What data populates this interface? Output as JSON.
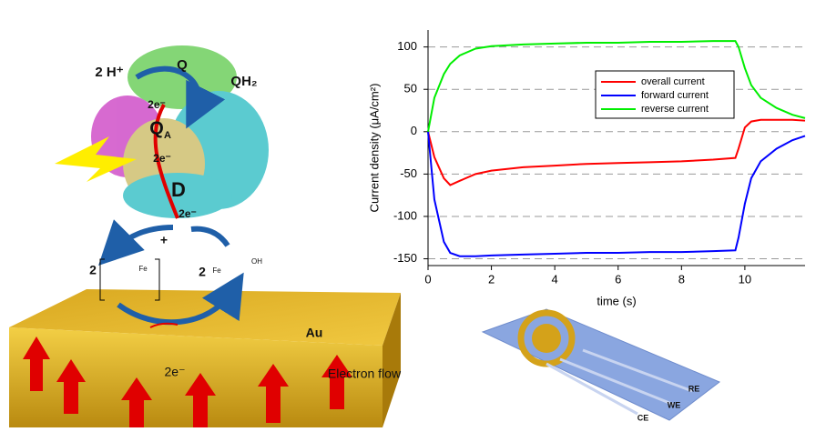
{
  "chart_data": {
    "type": "line",
    "xlabel": "time (s)",
    "ylabel": "Current density (μA/cm²)",
    "x": [
      0,
      0.2,
      0.5,
      0.7,
      1,
      1.5,
      2,
      3,
      4,
      5,
      6,
      7,
      8,
      9,
      9.7,
      9.8,
      10,
      10.2,
      10.5,
      11,
      11.5,
      11.9
    ],
    "series": [
      {
        "name": "overall current",
        "color": "#ff0000",
        "values": [
          0,
          -30,
          -55,
          -63,
          -58,
          -50,
          -46,
          -42,
          -40,
          -38,
          -37,
          -36,
          -35,
          -33,
          -31,
          -20,
          5,
          12,
          14,
          14,
          14,
          13
        ]
      },
      {
        "name": "forward current",
        "color": "#0000ff",
        "values": [
          0,
          -80,
          -130,
          -143,
          -147,
          -147,
          -146,
          -145,
          -144,
          -143,
          -143,
          -142,
          -142,
          -141,
          -140,
          -125,
          -85,
          -55,
          -35,
          -20,
          -10,
          -5
        ]
      },
      {
        "name": "reverse current",
        "color": "#00ee00",
        "values": [
          0,
          40,
          68,
          80,
          90,
          98,
          101,
          103,
          104,
          105,
          105,
          106,
          106,
          107,
          107,
          100,
          75,
          55,
          40,
          28,
          20,
          16
        ]
      }
    ],
    "xlim": [
      0,
      11.9
    ],
    "ylim": [
      -158,
      120
    ],
    "xticks": [
      0,
      2,
      4,
      6,
      8,
      10
    ],
    "yticks": [
      -150,
      -100,
      -50,
      0,
      50,
      100
    ],
    "grid": true,
    "legend": "upper right"
  },
  "diagram": {
    "labels": [
      "2 H⁺",
      "Q",
      "QH₂",
      "2e⁻",
      "Q",
      "A",
      "2e⁻",
      "D",
      "2e⁻",
      "2",
      "+",
      "Fe",
      "2",
      "Fe",
      "OH",
      "Au",
      "2e⁻",
      "Electron flow",
      "RE",
      "WE",
      "CE"
    ]
  }
}
